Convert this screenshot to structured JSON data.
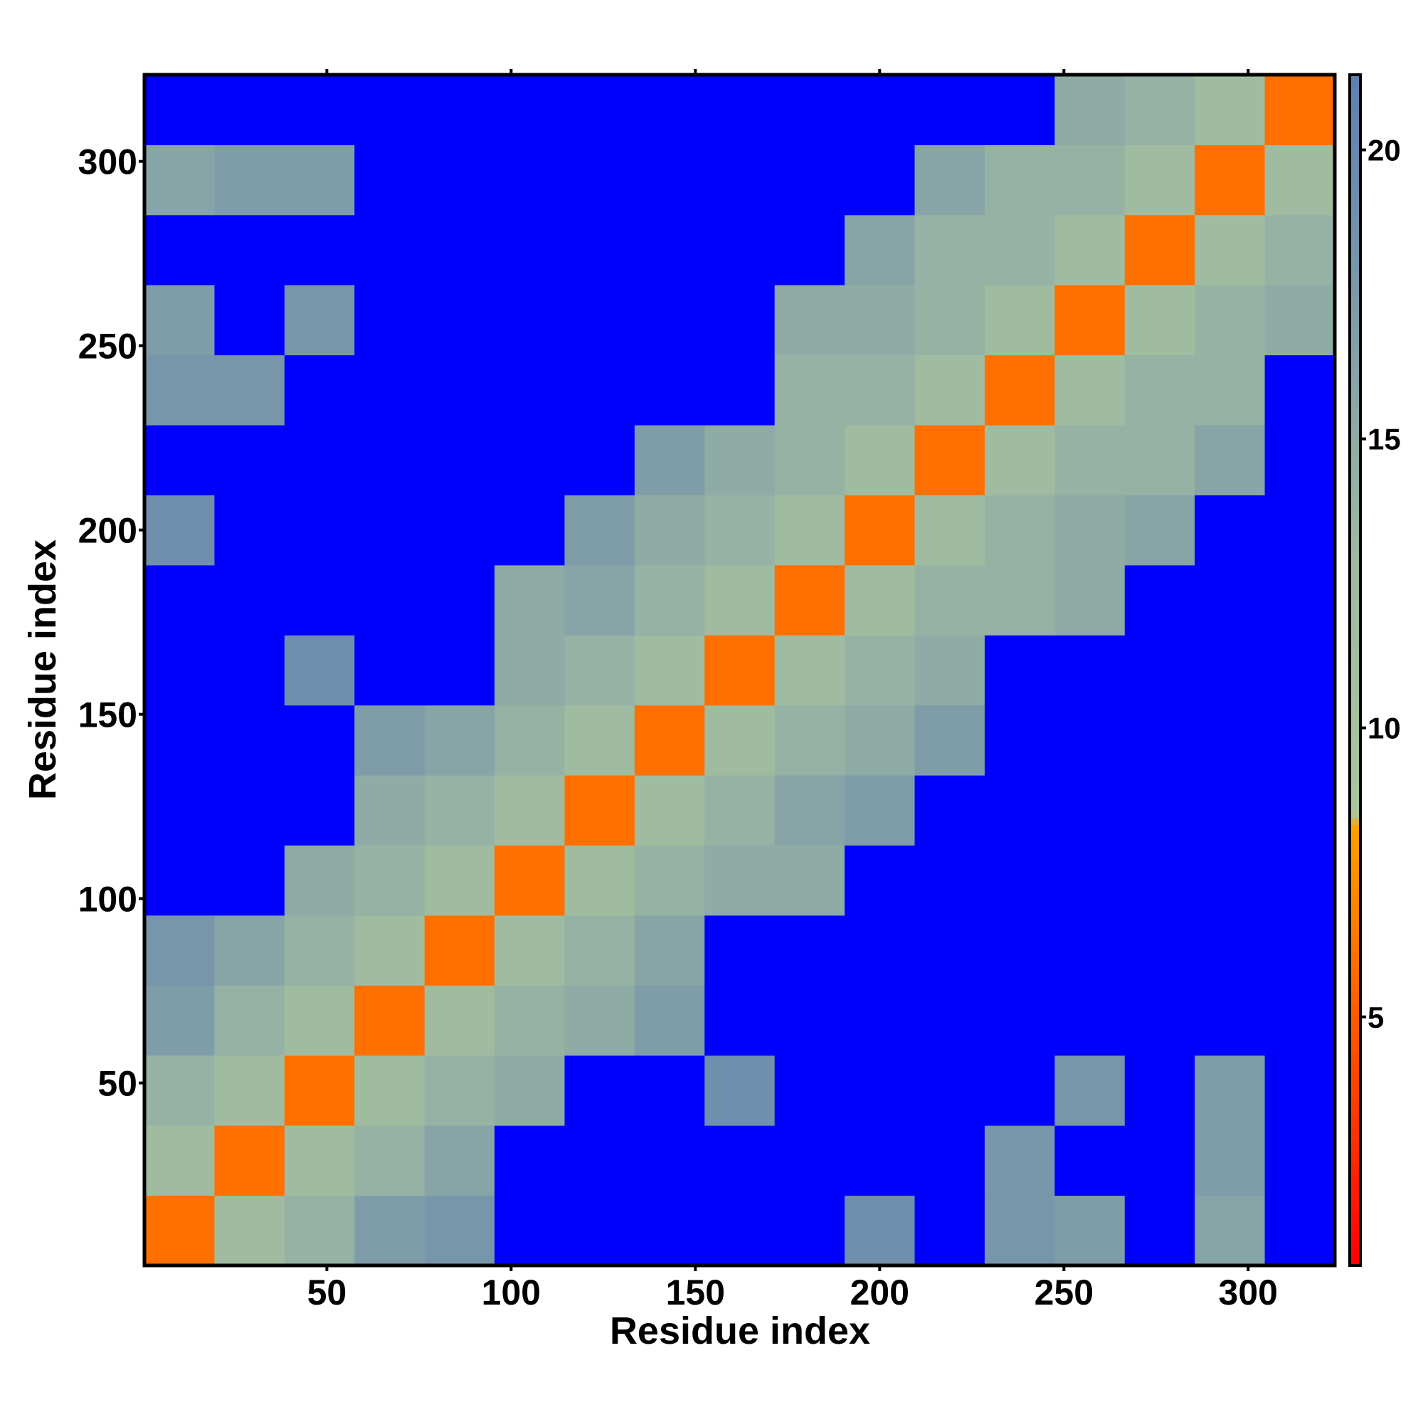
{
  "chart_data": {
    "type": "heatmap",
    "xlabel": "Residue index",
    "ylabel": "Residue index",
    "x": [
      10,
      29,
      48,
      67,
      86,
      105,
      124,
      143,
      162,
      181,
      200,
      219,
      238,
      257,
      276,
      295,
      314
    ],
    "y": [
      10,
      29,
      48,
      67,
      86,
      105,
      124,
      143,
      162,
      181,
      200,
      219,
      238,
      257,
      276,
      295,
      314
    ],
    "z": [
      [
        6,
        12,
        14,
        17,
        18,
        21.5,
        21.5,
        21.5,
        21.5,
        21.5,
        19,
        21.5,
        18,
        17,
        21.5,
        16,
        21.5
      ],
      [
        12,
        6,
        12,
        14,
        16,
        21.5,
        21.5,
        21.5,
        21.5,
        21.5,
        21.5,
        21.5,
        18,
        21.5,
        21.5,
        17,
        21.5
      ],
      [
        14,
        12,
        6,
        12,
        14,
        15,
        21.5,
        21.5,
        19,
        21.5,
        21.5,
        21.5,
        21.5,
        18,
        21.5,
        17,
        21.5
      ],
      [
        17,
        14,
        12,
        6,
        12,
        14,
        15,
        17,
        21.5,
        21.5,
        21.5,
        21.5,
        21.5,
        21.5,
        21.5,
        21.5,
        21.5
      ],
      [
        18,
        16,
        14,
        12,
        6,
        12,
        14,
        16,
        21.5,
        21.5,
        21.5,
        21.5,
        21.5,
        21.5,
        21.5,
        21.5,
        21.5
      ],
      [
        21.5,
        21.5,
        15,
        14,
        12,
        6,
        12,
        14,
        15,
        15,
        21.5,
        21.5,
        21.5,
        21.5,
        21.5,
        21.5,
        21.5
      ],
      [
        21.5,
        21.5,
        21.5,
        15,
        14,
        12,
        6,
        12,
        14,
        16,
        17,
        21.5,
        21.5,
        21.5,
        21.5,
        21.5,
        21.5
      ],
      [
        21.5,
        21.5,
        21.5,
        17,
        16,
        14,
        12,
        6,
        12,
        14,
        15,
        17,
        21.5,
        21.5,
        21.5,
        21.5,
        21.5
      ],
      [
        21.5,
        21.5,
        19,
        21.5,
        21.5,
        15,
        14,
        12,
        6,
        12,
        14,
        15,
        21.5,
        21.5,
        21.5,
        21.5,
        21.5
      ],
      [
        21.5,
        21.5,
        21.5,
        21.5,
        21.5,
        15,
        16,
        14,
        12,
        6,
        12,
        14,
        14,
        15,
        21.5,
        21.5,
        21.5
      ],
      [
        19,
        21.5,
        21.5,
        21.5,
        21.5,
        21.5,
        17,
        15,
        14,
        12,
        6,
        12,
        14,
        15,
        16,
        21.5,
        21.5
      ],
      [
        21.5,
        21.5,
        21.5,
        21.5,
        21.5,
        21.5,
        21.5,
        17,
        15,
        14,
        12,
        6,
        12,
        14,
        14,
        16,
        21.5
      ],
      [
        18,
        18,
        21.5,
        21.5,
        21.5,
        21.5,
        21.5,
        21.5,
        21.5,
        14,
        14,
        12,
        6,
        12,
        14,
        14,
        21.5
      ],
      [
        17,
        21.5,
        18,
        21.5,
        21.5,
        21.5,
        21.5,
        21.5,
        21.5,
        15,
        15,
        14,
        12,
        6,
        12,
        14,
        15
      ],
      [
        21.5,
        21.5,
        21.5,
        21.5,
        21.5,
        21.5,
        21.5,
        21.5,
        21.5,
        21.5,
        16,
        14,
        14,
        12,
        6,
        12,
        14
      ],
      [
        16,
        17,
        17,
        21.5,
        21.5,
        21.5,
        21.5,
        21.5,
        21.5,
        21.5,
        21.5,
        16,
        14,
        14,
        12,
        6,
        12
      ],
      [
        21.5,
        21.5,
        21.5,
        21.5,
        21.5,
        21.5,
        21.5,
        21.5,
        21.5,
        21.5,
        21.5,
        21.5,
        21.5,
        15,
        14,
        12,
        6
      ]
    ],
    "xlim": [
      0.5,
      323.5
    ],
    "ylim": [
      0.5,
      323.5
    ],
    "xticks": [
      50,
      100,
      150,
      200,
      250,
      300
    ],
    "yticks": [
      50,
      100,
      150,
      200,
      250,
      300
    ],
    "clim": [
      0.7,
      21.3
    ],
    "cticks": [
      5,
      10,
      15,
      20
    ],
    "colorscale": [
      [
        0.7,
        "#ff0000"
      ],
      [
        8.3,
        "#ffa000"
      ],
      [
        8.5,
        "#a9c79b"
      ],
      [
        13,
        "#9db9a2"
      ],
      [
        21.3,
        "#5f7fb0"
      ]
    ],
    "over_color": "#0000ff"
  }
}
